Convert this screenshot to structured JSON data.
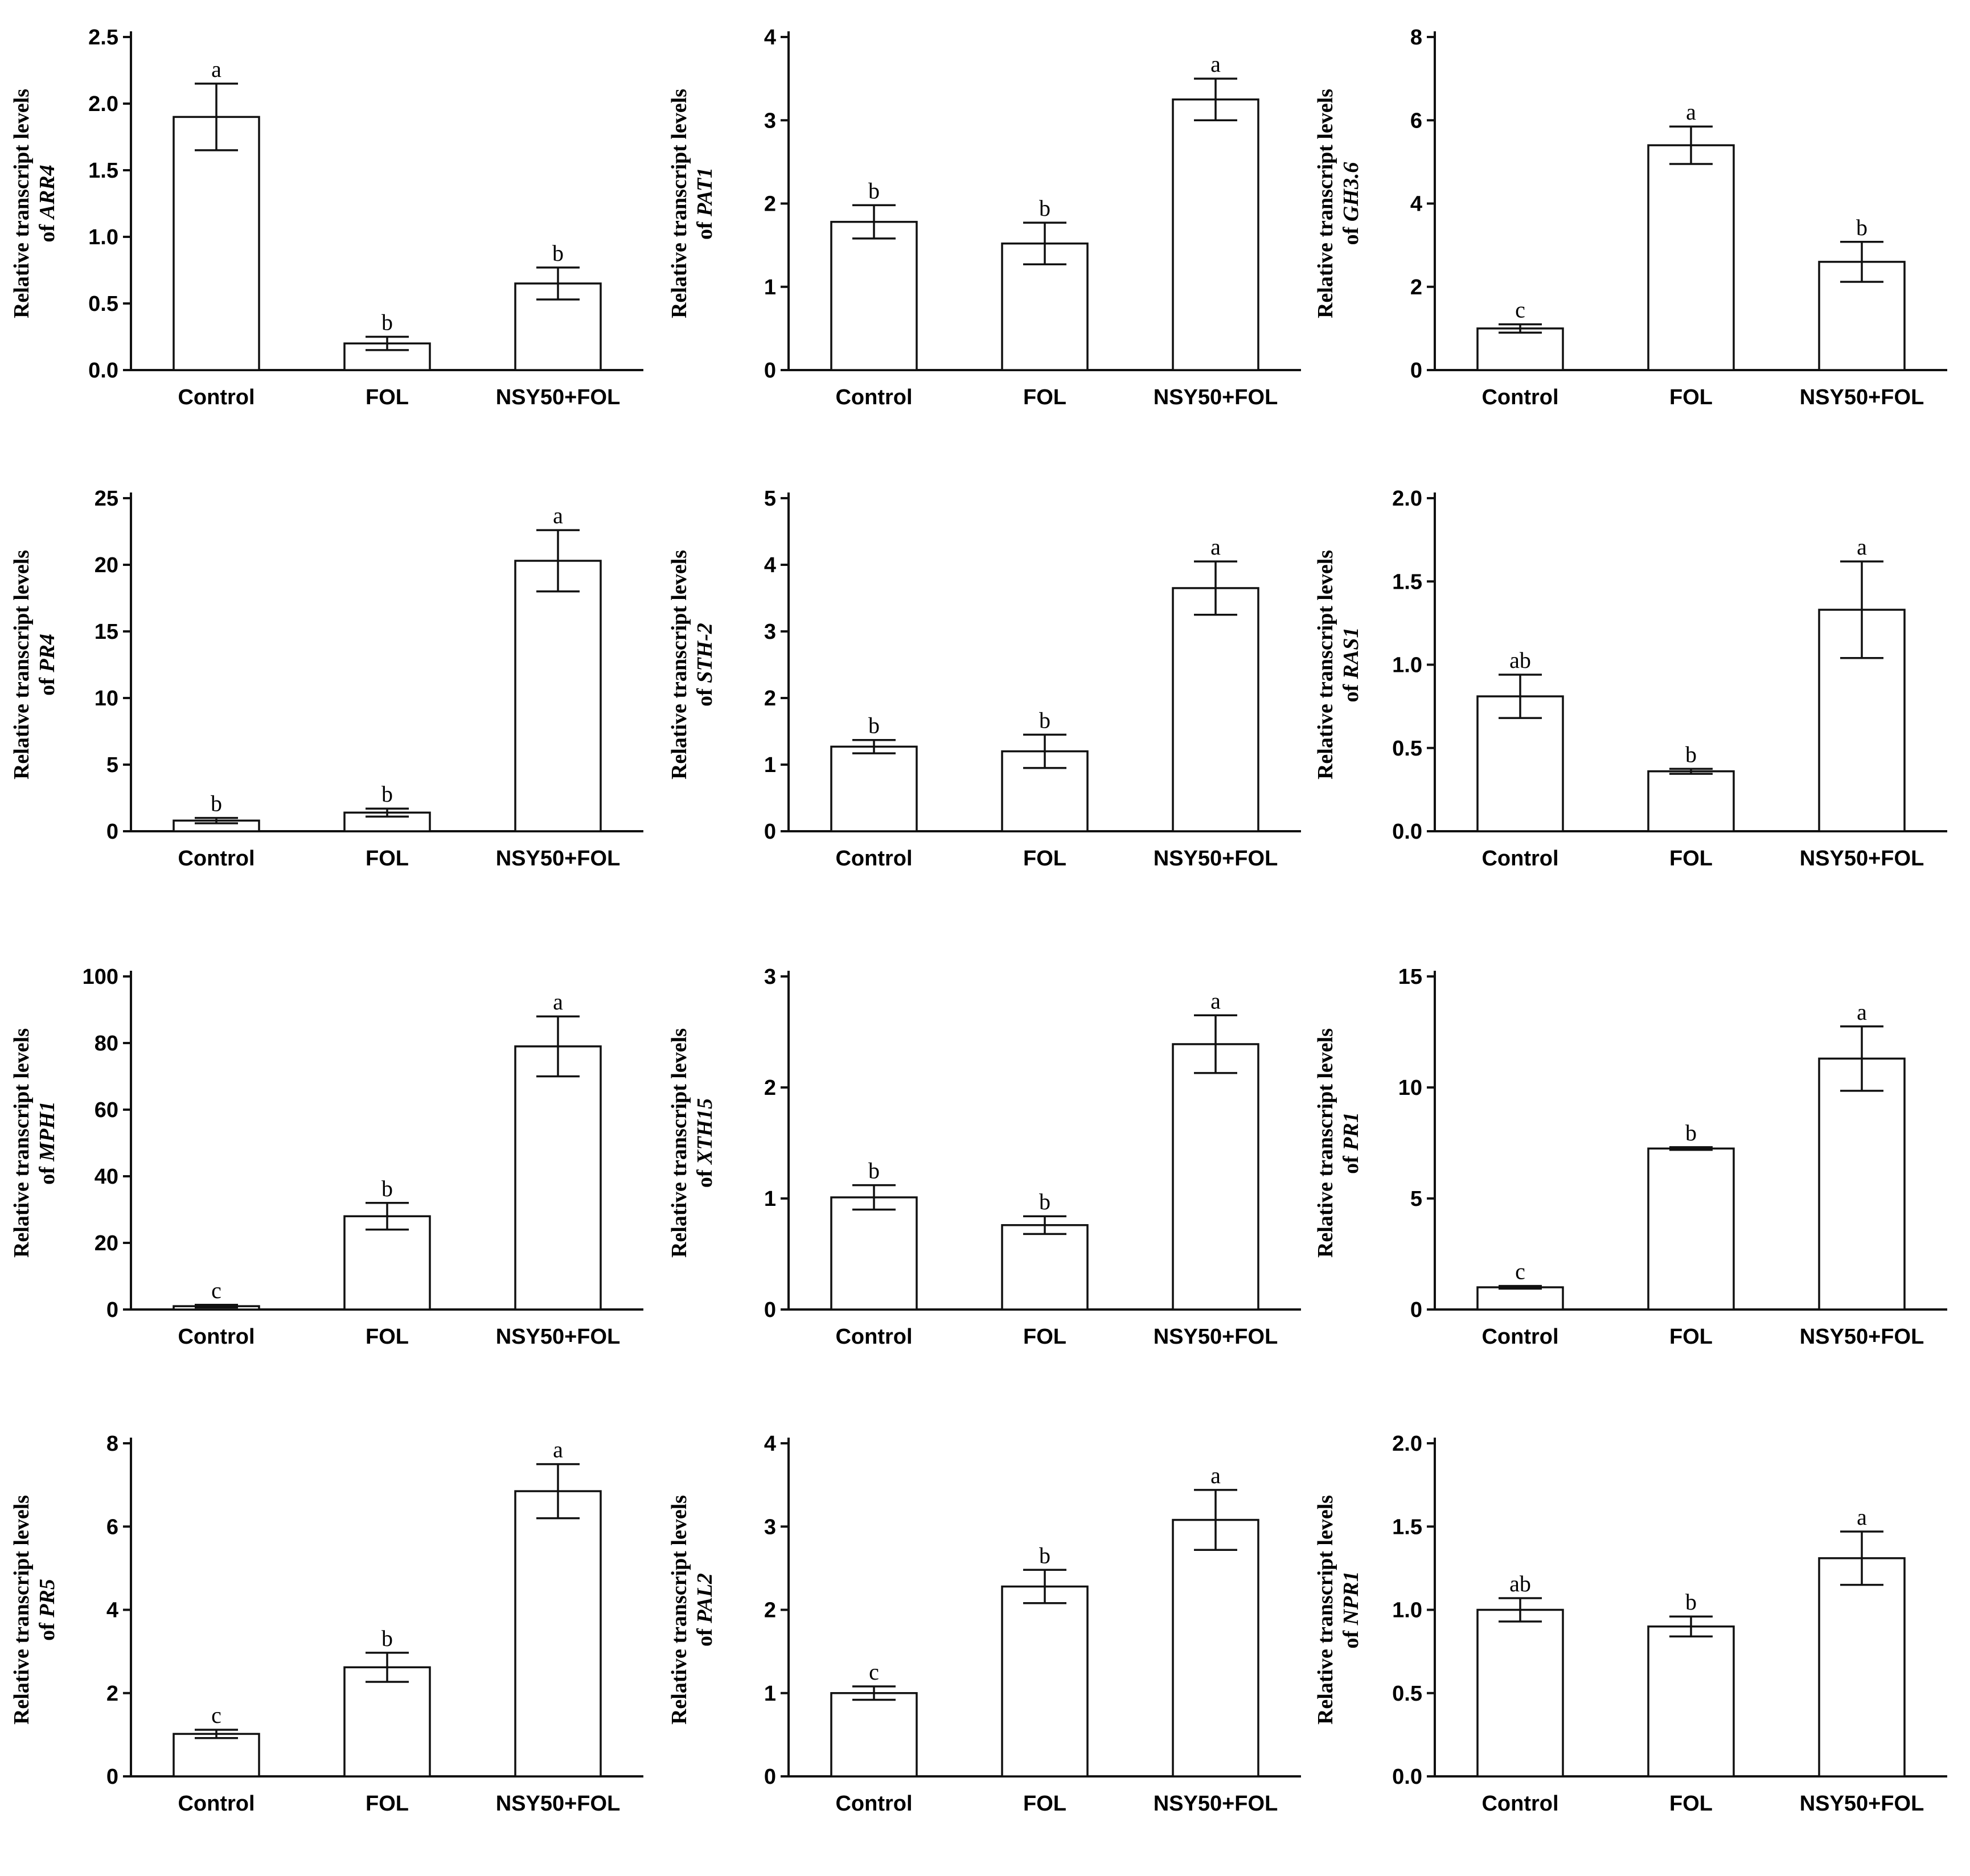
{
  "chart_data": [
    {
      "type": "bar",
      "ylabel_line1": "Relative transcript levels",
      "ylabel_prefix": "of ",
      "ylabel_gene": "ARR4",
      "categories": [
        "Control",
        "FOL",
        "NSY50+FOL"
      ],
      "values": [
        1.9,
        0.2,
        0.65
      ],
      "errors": [
        0.25,
        0.05,
        0.12
      ],
      "letters": [
        "a",
        "b",
        "b"
      ],
      "ylim": [
        0,
        2.5
      ],
      "yticks": [
        "0.0",
        "0.5",
        "1.0",
        "1.5",
        "2.0",
        "2.5"
      ]
    },
    {
      "type": "bar",
      "ylabel_line1": "Relative transcript levels",
      "ylabel_prefix": "of ",
      "ylabel_gene": "PAT1",
      "categories": [
        "Control",
        "FOL",
        "NSY50+FOL"
      ],
      "values": [
        1.78,
        1.52,
        3.25
      ],
      "errors": [
        0.2,
        0.25,
        0.25
      ],
      "letters": [
        "b",
        "b",
        "a"
      ],
      "ylim": [
        0,
        4
      ],
      "yticks": [
        "0",
        "1",
        "2",
        "3",
        "4"
      ]
    },
    {
      "type": "bar",
      "ylabel_line1": "Relative transcript levels",
      "ylabel_prefix": "of ",
      "ylabel_gene": "GH3.6",
      "categories": [
        "Control",
        "FOL",
        "NSY50+FOL"
      ],
      "values": [
        1.0,
        5.4,
        2.6
      ],
      "errors": [
        0.1,
        0.45,
        0.48
      ],
      "letters": [
        "c",
        "a",
        "b"
      ],
      "ylim": [
        0,
        8
      ],
      "yticks": [
        "0",
        "2",
        "4",
        "6",
        "8"
      ]
    },
    {
      "type": "bar",
      "ylabel_line1": "Relative transcript levels",
      "ylabel_prefix": "of ",
      "ylabel_gene": "PR4",
      "categories": [
        "Control",
        "FOL",
        "NSY50+FOL"
      ],
      "values": [
        0.8,
        1.4,
        20.3
      ],
      "errors": [
        0.2,
        0.3,
        2.3
      ],
      "letters": [
        "b",
        "b",
        "a"
      ],
      "ylim": [
        0,
        25
      ],
      "yticks": [
        "0",
        "5",
        "10",
        "15",
        "20",
        "25"
      ]
    },
    {
      "type": "bar",
      "ylabel_line1": "Relative transcript levels",
      "ylabel_prefix": "of ",
      "ylabel_gene": "STH-2",
      "categories": [
        "Control",
        "FOL",
        "NSY50+FOL"
      ],
      "values": [
        1.27,
        1.2,
        3.65
      ],
      "errors": [
        0.1,
        0.25,
        0.4
      ],
      "letters": [
        "b",
        "b",
        "a"
      ],
      "ylim": [
        0,
        5
      ],
      "yticks": [
        "0",
        "1",
        "2",
        "3",
        "4",
        "5"
      ]
    },
    {
      "type": "bar",
      "ylabel_line1": "Relative transcript levels",
      "ylabel_prefix": "of ",
      "ylabel_gene": "RAS1",
      "categories": [
        "Control",
        "FOL",
        "NSY50+FOL"
      ],
      "values": [
        0.81,
        0.36,
        1.33
      ],
      "errors": [
        0.13,
        0.015,
        0.29
      ],
      "letters": [
        "ab",
        "b",
        "a"
      ],
      "ylim": [
        0,
        2.0
      ],
      "yticks": [
        "0.0",
        "0.5",
        "1.0",
        "1.5",
        "2.0"
      ]
    },
    {
      "type": "bar",
      "ylabel_line1": "Relative transcript levels",
      "ylabel_prefix": "of ",
      "ylabel_gene": "MPH1",
      "categories": [
        "Control",
        "FOL",
        "NSY50+FOL"
      ],
      "values": [
        1,
        28,
        79
      ],
      "errors": [
        0.4,
        4,
        9
      ],
      "letters": [
        "c",
        "b",
        "a"
      ],
      "ylim": [
        0,
        100
      ],
      "yticks": [
        "0",
        "20",
        "40",
        "60",
        "80",
        "100"
      ]
    },
    {
      "type": "bar",
      "ylabel_line1": "Relative transcript levels",
      "ylabel_prefix": "of ",
      "ylabel_gene": "XTH15",
      "categories": [
        "Control",
        "FOL",
        "NSY50+FOL"
      ],
      "values": [
        1.01,
        0.76,
        2.39
      ],
      "errors": [
        0.11,
        0.08,
        0.26
      ],
      "letters": [
        "b",
        "b",
        "a"
      ],
      "ylim": [
        0,
        3
      ],
      "yticks": [
        "0",
        "1",
        "2",
        "3"
      ]
    },
    {
      "type": "bar",
      "ylabel_line1": "Relative transcript levels",
      "ylabel_prefix": "of ",
      "ylabel_gene": "PR1",
      "categories": [
        "Control",
        "FOL",
        "NSY50+FOL"
      ],
      "values": [
        1.0,
        7.25,
        11.3
      ],
      "errors": [
        0.06,
        0.06,
        1.45
      ],
      "letters": [
        "c",
        "b",
        "a"
      ],
      "ylim": [
        0,
        15
      ],
      "yticks": [
        "0",
        "5",
        "10",
        "15"
      ]
    },
    {
      "type": "bar",
      "ylabel_line1": "Relative transcript levels",
      "ylabel_prefix": "of ",
      "ylabel_gene": "PR5",
      "categories": [
        "Control",
        "FOL",
        "NSY50+FOL"
      ],
      "values": [
        1.02,
        2.62,
        6.85
      ],
      "errors": [
        0.1,
        0.35,
        0.65
      ],
      "letters": [
        "c",
        "b",
        "a"
      ],
      "ylim": [
        0,
        8
      ],
      "yticks": [
        "0",
        "2",
        "4",
        "6",
        "8"
      ]
    },
    {
      "type": "bar",
      "ylabel_line1": "Relative transcript levels",
      "ylabel_prefix": "of ",
      "ylabel_gene": "PAL2",
      "categories": [
        "Control",
        "FOL",
        "NSY50+FOL"
      ],
      "values": [
        1.0,
        2.28,
        3.08
      ],
      "errors": [
        0.08,
        0.2,
        0.36
      ],
      "letters": [
        "c",
        "b",
        "a"
      ],
      "ylim": [
        0,
        4
      ],
      "yticks": [
        "0",
        "1",
        "2",
        "3",
        "4"
      ]
    },
    {
      "type": "bar",
      "ylabel_line1": "Relative transcript levels",
      "ylabel_prefix": "of ",
      "ylabel_gene": "NPR1",
      "categories": [
        "Control",
        "FOL",
        "NSY50+FOL"
      ],
      "values": [
        1.0,
        0.9,
        1.31
      ],
      "errors": [
        0.07,
        0.06,
        0.16
      ],
      "letters": [
        "ab",
        "b",
        "a"
      ],
      "ylim": [
        0,
        2.0
      ],
      "yticks": [
        "0.0",
        "0.5",
        "1.0",
        "1.5",
        "2.0"
      ]
    }
  ]
}
